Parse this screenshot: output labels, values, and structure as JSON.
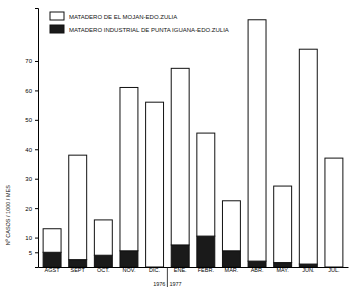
{
  "chart_data": {
    "type": "bar",
    "stacked": true,
    "y_label": "Nº CASOS / 1000 / MES",
    "categories": [
      "AGST",
      "SEPT",
      "OCT.",
      "NOV.",
      "DIC.",
      "ENE.",
      "FEBR.",
      "MAR.",
      "ABR.",
      "MAY.",
      "JUN.",
      "JUL."
    ],
    "series": [
      {
        "name": "MATADERO DE EL MOJAN-EDO.ZULIA",
        "color": "#ffffff",
        "values": [
          8,
          35.5,
          12,
          55.5,
          56,
          60,
          35,
          17,
          82,
          26,
          73,
          37
        ]
      },
      {
        "name": "MATADERO INDUSTRIAL DE PUNTA IGUANA-EDO.ZULIA",
        "color": "#1a1a1a",
        "values": [
          5,
          2.5,
          4,
          5.5,
          0,
          7.5,
          10.5,
          5.5,
          2,
          1.5,
          1,
          0
        ]
      }
    ],
    "annotations": [
      "1976",
      "1977"
    ],
    "ylim": [
      0,
      88
    ],
    "yticks": [
      5,
      10,
      20,
      30,
      40,
      50,
      60,
      70
    ],
    "grid": false,
    "legend": "upper left"
  }
}
